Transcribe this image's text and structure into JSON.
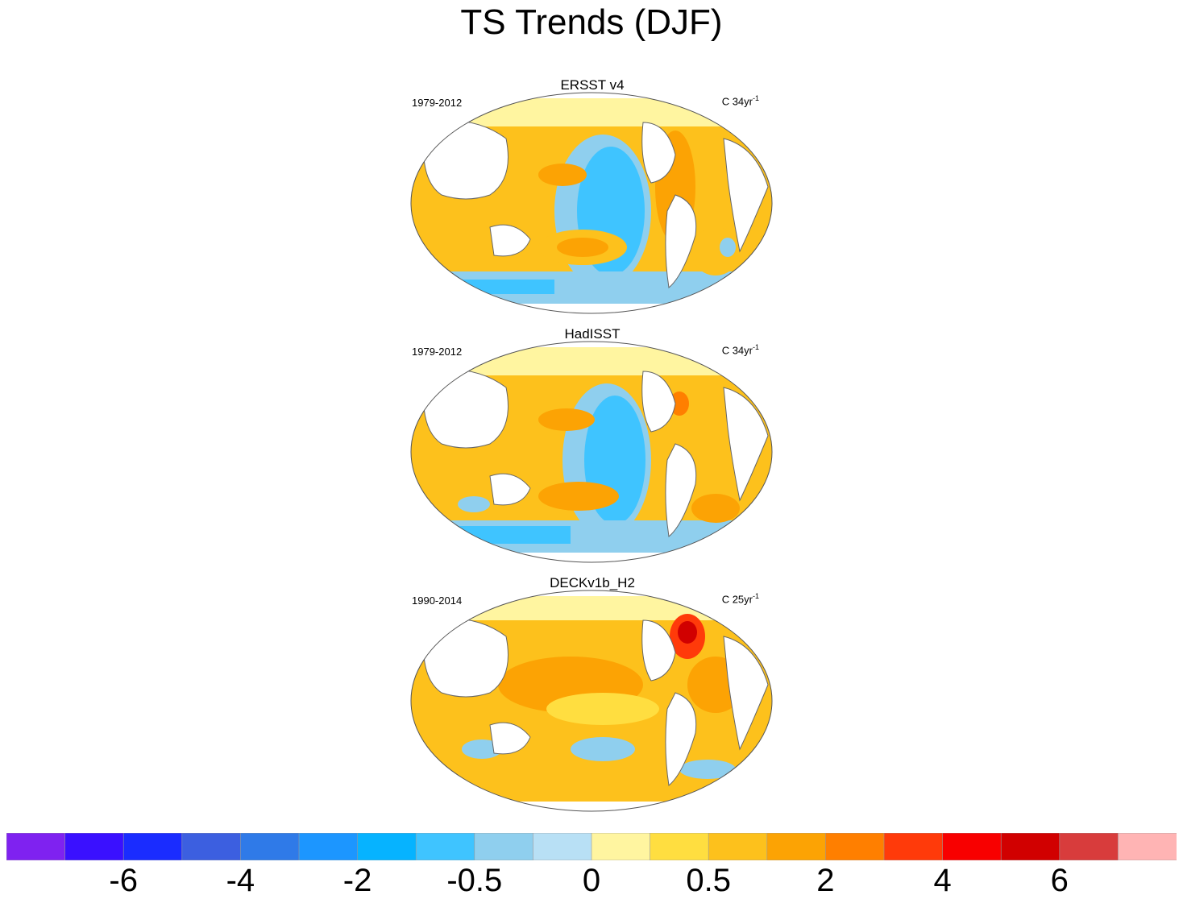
{
  "title": "TS Trends (DJF)",
  "panels": [
    {
      "name": "ERSST v4",
      "period": "1979-2012",
      "units_prefix": "C 34yr",
      "units_sup": "-1"
    },
    {
      "name": "HadISST",
      "period": "1979-2012",
      "units_prefix": "C 34yr",
      "units_sup": "-1"
    },
    {
      "name": "DECKv1b_H2",
      "period": "1990-2014",
      "units_prefix": "C 25yr",
      "units_sup": "-1"
    }
  ],
  "chart_data": {
    "type": "heatmap",
    "title": "TS Trends (DJF)",
    "colorbar": {
      "colors": [
        "#7f22f0",
        "#3a10ff",
        "#1a2cff",
        "#3c5fe0",
        "#2f7ae8",
        "#1c96ff",
        "#06b3ff",
        "#3fc4ff",
        "#8fcfee",
        "#b8e0f5",
        "#fff5a0",
        "#ffde40",
        "#fdc11c",
        "#fca304",
        "#ff7f00",
        "#ff3a0a",
        "#f80000",
        "#d10000",
        "#d83c3c",
        "#ffb4b4"
      ],
      "labels": [
        "-6",
        "-4",
        "-2",
        "-0.5",
        "0",
        "0.5",
        "2",
        "4",
        "6"
      ],
      "label_boundary_index": [
        2,
        4,
        6,
        8,
        10,
        12,
        14,
        16,
        18
      ]
    },
    "panels": [
      {
        "name": "ERSST v4",
        "period": "1979-2012",
        "units": "C 34yr-1",
        "pattern": "cool eastern Pacific, warm western Pacific and Atlantic"
      },
      {
        "name": "HadISST",
        "period": "1979-2012",
        "units": "C 34yr-1",
        "pattern": "cool eastern Pacific, warm western Pacific and Atlantic"
      },
      {
        "name": "DECKv1b_H2",
        "period": "1990-2014",
        "units": "C 25yr-1",
        "pattern": "broad warming, strong North Atlantic maximum"
      }
    ]
  }
}
